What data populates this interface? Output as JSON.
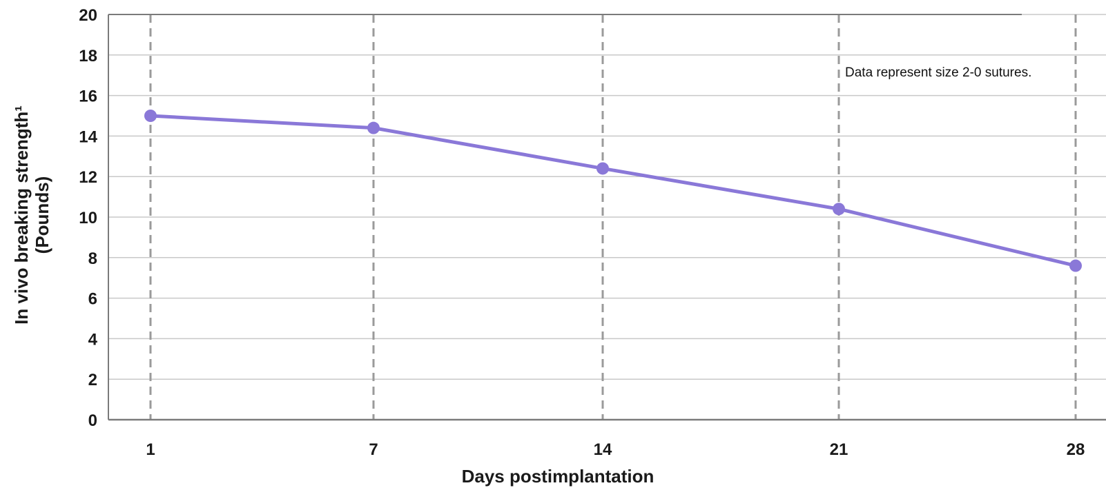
{
  "chart_data": {
    "type": "line",
    "title": "",
    "xlabel": "Days postimplantation",
    "ylabel_line1": "In vivo breaking strength¹",
    "ylabel_line2": "(Pounds)",
    "annotation": "Data represent size 2-0 sutures.",
    "x": [
      1,
      7,
      14,
      21,
      28
    ],
    "x_tick_labels": [
      "1",
      "7",
      "14",
      "21",
      "28"
    ],
    "y_ticks": [
      0,
      2,
      4,
      6,
      8,
      10,
      12,
      14,
      16,
      18,
      20
    ],
    "ylim": [
      0,
      20
    ],
    "grid": true,
    "series": [
      {
        "values": [
          15.0,
          14.4,
          12.4,
          10.4,
          7.6
        ]
      }
    ]
  },
  "colors": {
    "line": "#8a78d8",
    "marker": "#8a78d8",
    "gridline": "#c8c8c8",
    "dashed_vertical": "#9a9a9a",
    "axis": "#7a7a7a"
  }
}
